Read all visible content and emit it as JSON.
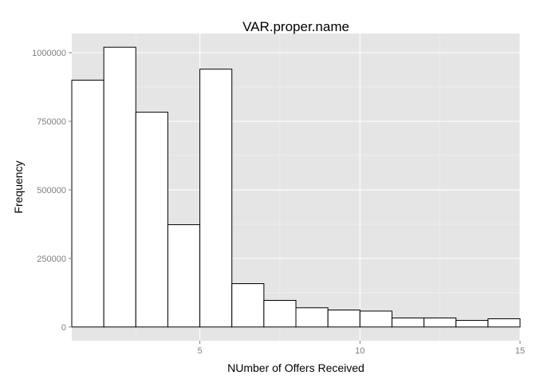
{
  "chart_data": {
    "type": "bar",
    "title": "VAR.proper.name",
    "xlabel": "NUmber of Offers Received",
    "ylabel": "Frequency",
    "bin_edges": [
      1,
      2,
      3,
      4,
      5,
      6,
      7,
      8,
      9,
      10,
      11,
      12,
      13,
      14,
      15
    ],
    "values": [
      900000,
      1020000,
      783000,
      373000,
      940000,
      158000,
      97000,
      70000,
      62000,
      58000,
      33000,
      33000,
      24000,
      30000
    ],
    "xlim": [
      1,
      15
    ],
    "ylim": [
      -50000,
      1070000
    ],
    "x_ticks": [
      5,
      10,
      15
    ],
    "y_ticks": [
      0,
      250000,
      500000,
      750000,
      1000000
    ],
    "x_tick_labels": [
      "5",
      "10",
      "15"
    ],
    "y_tick_labels": [
      "0",
      "250000",
      "500000",
      "750000",
      "1000000"
    ],
    "grid": true,
    "colors": {
      "panel": "#e5e5e5",
      "grid_major": "#ffffff",
      "grid_minor": "#f2f2f2",
      "bar_fill": "#ffffff",
      "bar_stroke": "#000000",
      "tick_text": "#7f7f7f"
    }
  }
}
